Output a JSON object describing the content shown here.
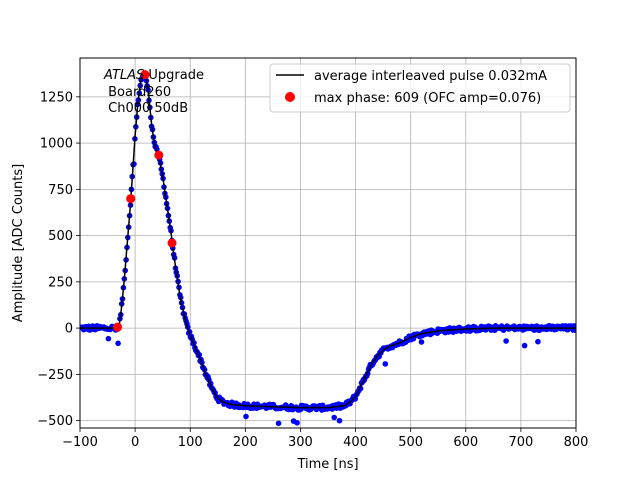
{
  "chart_data": {
    "type": "scatter",
    "title": "",
    "xlabel": "Time [ns]",
    "ylabel": "Amplitude [ADC Counts]",
    "xlim": [
      -100,
      800
    ],
    "ylim": [
      -540,
      1460
    ],
    "xticks": [
      -100,
      0,
      100,
      200,
      300,
      400,
      500,
      600,
      700,
      800
    ],
    "yticks": [
      -500,
      -250,
      0,
      250,
      500,
      750,
      1000,
      1250
    ],
    "grid": true,
    "legend_position": "top-right",
    "annotation": {
      "line1_italic": "ATLAS",
      "line1_rest": " Upgrade",
      "line2": " Board260",
      "line3": " Ch000 50dB"
    },
    "series": [
      {
        "name": "average interleaved pulse 0.032mA",
        "type": "line",
        "color": "#000000",
        "x": [
          -100,
          -50,
          -40,
          -35,
          -30,
          -25,
          -20,
          -15,
          -10,
          -5,
          0,
          5,
          10,
          15,
          20,
          25,
          30,
          35,
          40,
          45,
          50,
          55,
          60,
          65,
          70,
          75,
          80,
          85,
          90,
          95,
          100,
          110,
          120,
          130,
          140,
          150,
          160,
          170,
          180,
          200,
          250,
          300,
          350,
          380,
          390,
          400,
          410,
          420,
          430,
          440,
          450,
          460,
          480,
          500,
          520,
          550,
          600,
          650,
          700,
          750,
          800
        ],
        "y": [
          0,
          0,
          0,
          -5,
          -10,
          100,
          250,
          430,
          610,
          820,
          1040,
          1220,
          1330,
          1375,
          1350,
          1250,
          1100,
          1000,
          950,
          900,
          820,
          720,
          620,
          520,
          400,
          300,
          200,
          120,
          60,
          0,
          -40,
          -110,
          -180,
          -260,
          -330,
          -380,
          -400,
          -410,
          -415,
          -420,
          -425,
          -430,
          -430,
          -420,
          -400,
          -370,
          -310,
          -250,
          -190,
          -150,
          -120,
          -100,
          -80,
          -50,
          -30,
          -15,
          -5,
          0,
          0,
          0,
          0
        ]
      },
      {
        "name": "samples",
        "type": "scatter",
        "color": "#0000ff"
      },
      {
        "name": "max phase: 609 (OFC amp=0.076)",
        "type": "scatter",
        "color": "#ff0000",
        "x": [
          -32,
          -8,
          18,
          43,
          67
        ],
        "y": [
          5,
          700,
          1370,
          935,
          460
        ]
      }
    ]
  }
}
